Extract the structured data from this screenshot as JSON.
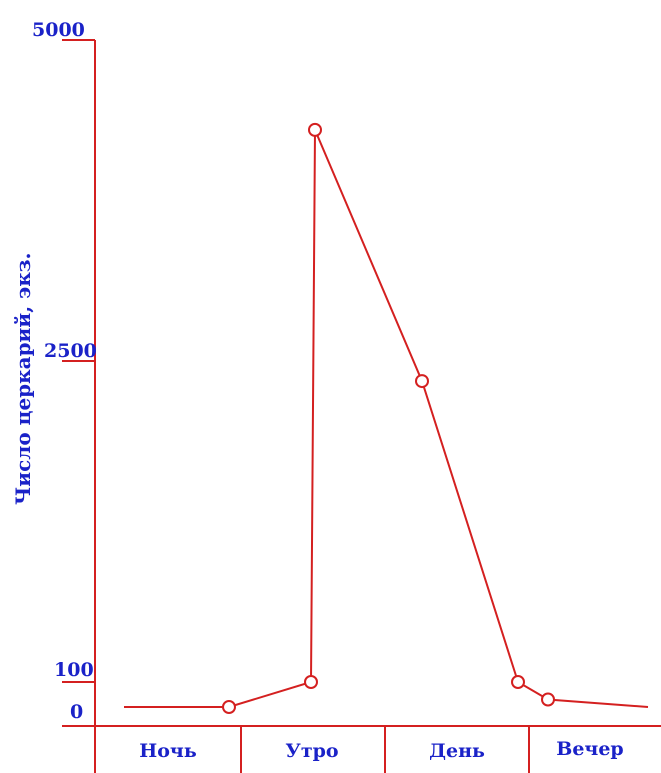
{
  "chart_data": {
    "type": "line",
    "ylabel": "Число церкарий, экз.",
    "xlabel": "",
    "title": "",
    "y_ticks": [
      "5000",
      "2500",
      "100",
      "0"
    ],
    "categories": [
      "Ночь",
      "Утро",
      "День",
      "Вечер"
    ],
    "series": [
      {
        "points": [
          {
            "y": 0
          },
          {
            "y": 0
          },
          {
            "y": 100
          },
          {
            "y": 4300
          },
          {
            "y": 2350
          },
          {
            "y": 100
          },
          {
            "y": 30
          },
          {
            "y": 0
          }
        ]
      }
    ],
    "line_color": "#d42020",
    "text_color": "#1a22c8"
  }
}
